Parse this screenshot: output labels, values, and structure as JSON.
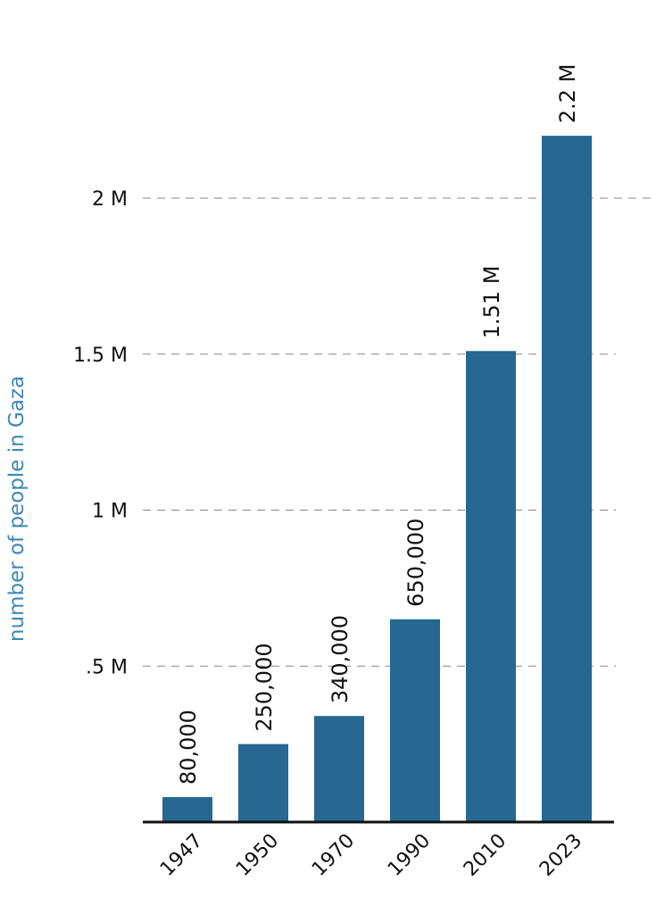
{
  "chart_data": {
    "type": "bar",
    "categories": [
      "1947",
      "1950",
      "1970",
      "1990",
      "2010",
      "2023"
    ],
    "values": [
      80000,
      250000,
      340000,
      650000,
      1510000,
      2200000
    ],
    "data_labels": [
      "80,000",
      "250,000",
      "340,000",
      "650,000",
      "1.51 M",
      "2.2 M"
    ],
    "title": "",
    "xlabel": "",
    "ylabel": "number of people in Gaza",
    "ylim": [
      0,
      2200000
    ],
    "yticks": [
      500000,
      1000000,
      1500000,
      2000000
    ],
    "ytick_labels": [
      ".5 M",
      "1 M",
      "1.5 M",
      "2 M"
    ],
    "grid": "horizontal dashed",
    "legend": "none",
    "colors": {
      "bar": "#266891",
      "ylabel": "#3d88b3",
      "grid": "#888888",
      "axis": "#111111"
    }
  }
}
